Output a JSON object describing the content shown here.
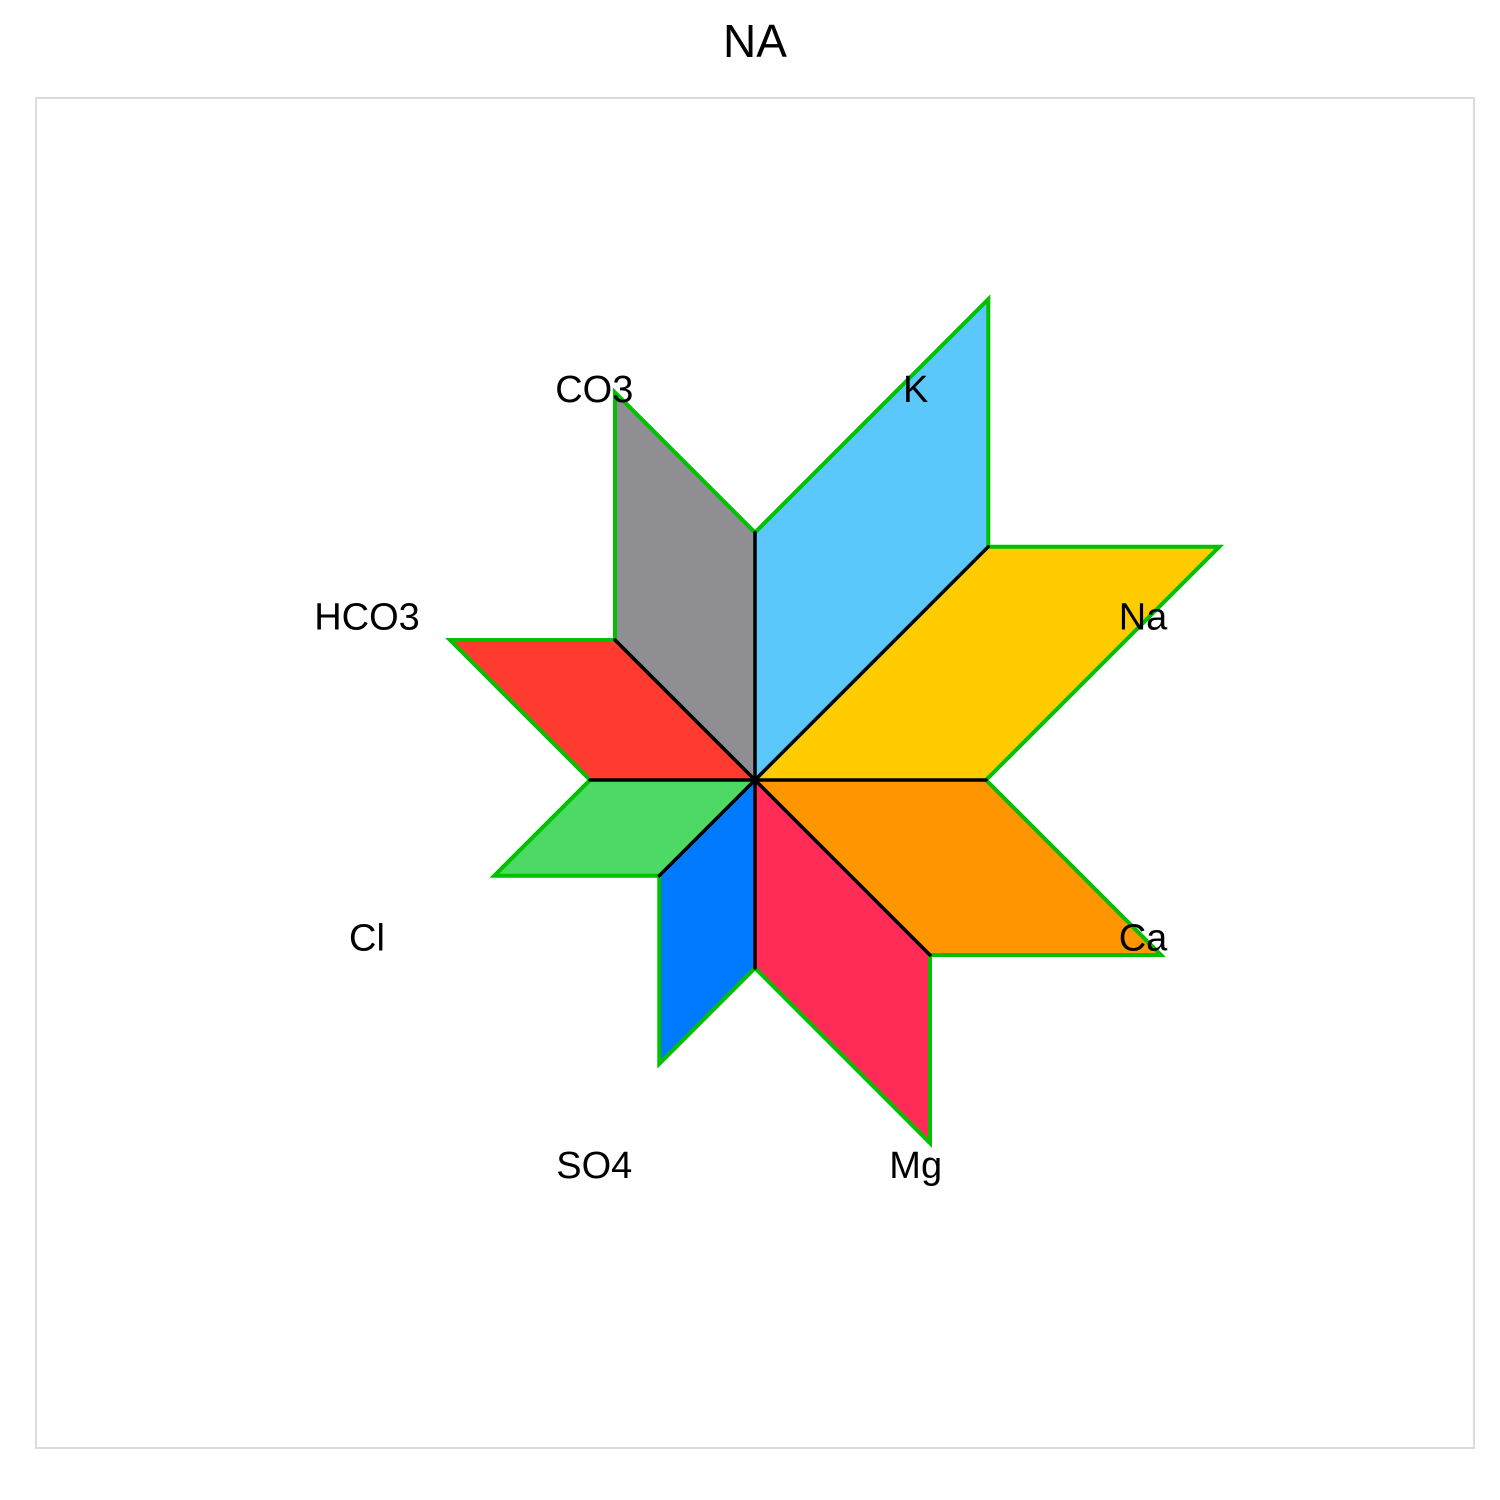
{
  "chart_data": {
    "type": "star",
    "title": "NA",
    "axes": [
      "K",
      "Na",
      "Ca",
      "Mg",
      "SO4",
      "Cl",
      "HCO3",
      "CO3"
    ],
    "values": [
      0.75,
      1.0,
      0.7,
      0.75,
      0.57,
      0.41,
      0.5,
      0.6
    ],
    "sector_colors": [
      "#5AC8FA",
      "#FFCC00",
      "#FF9500",
      "#FF2D55",
      "#007AFF",
      "#4CD964",
      "#FF3B30",
      "#8E8E93"
    ],
    "outline_color": "#00c000",
    "spoke_color": "#000000"
  }
}
